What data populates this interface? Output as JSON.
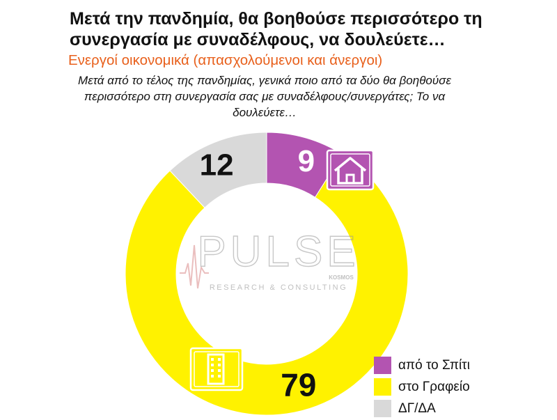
{
  "title": "Μετά την πανδημία, θα βοηθούσε περισσότερο τη συνεργασία με συναδέλφους, να δουλεύετε…",
  "subtitle": "Ενεργοί οικονομικά  (απασχολούμενοι και άνεργοι)",
  "question": "Μετά από το τέλος της πανδημίας, γενικά ποιο από τα δύο θα βοηθούσε περισσότερο στη συνεργασία σας με συναδέλφους/συνεργάτες; Το να δουλεύετε…",
  "colors": {
    "accent": "#e8601c",
    "title": "#111111"
  },
  "watermark": {
    "brand": "PULSE",
    "tagline": "RESEARCH & CONSULTING",
    "partner": "KOSMOS"
  },
  "icons": {
    "home": "house-icon",
    "office": "office-building-icon"
  },
  "chart_data": {
    "type": "pie",
    "style": "donut",
    "categories": [
      "από το Σπίτι",
      "στο Γραφείο",
      "ΔΓ/ΔΑ"
    ],
    "values": [
      9,
      79,
      12
    ],
    "colors": [
      "#b354b1",
      "#fff200",
      "#d9d9d9"
    ],
    "value_labels": [
      "9",
      "79",
      "12"
    ],
    "legend_position": "bottom-right"
  }
}
